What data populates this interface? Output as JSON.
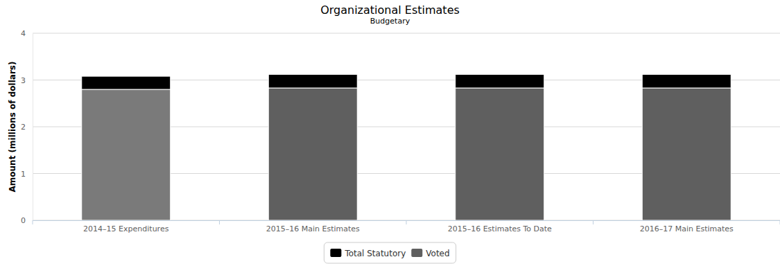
{
  "chart_data": {
    "type": "bar",
    "title": "Organizational Estimates",
    "subtitle": "Budgetary",
    "y_label": "Amount (millions of dollars)",
    "categories": [
      "2014–15 Expenditures",
      "2015–16 Main Estimates",
      "2015–16 Estimates To Date",
      "2016–17 Main Estimates"
    ],
    "series": [
      {
        "name": "Voted",
        "color": "#5f5f5f",
        "colors": [
          "#7a7a7a",
          "#5f5f5f",
          "#5f5f5f",
          "#5f5f5f"
        ],
        "values": [
          2.8,
          2.83,
          2.83,
          2.83
        ]
      },
      {
        "name": "Total Statutory",
        "color": "#000000",
        "values": [
          0.28,
          0.29,
          0.29,
          0.29
        ]
      }
    ],
    "stacked": true,
    "ylim": [
      0,
      4
    ],
    "yticks": [
      0,
      1,
      2,
      3,
      4
    ],
    "grid": true,
    "legend": "bottom"
  }
}
